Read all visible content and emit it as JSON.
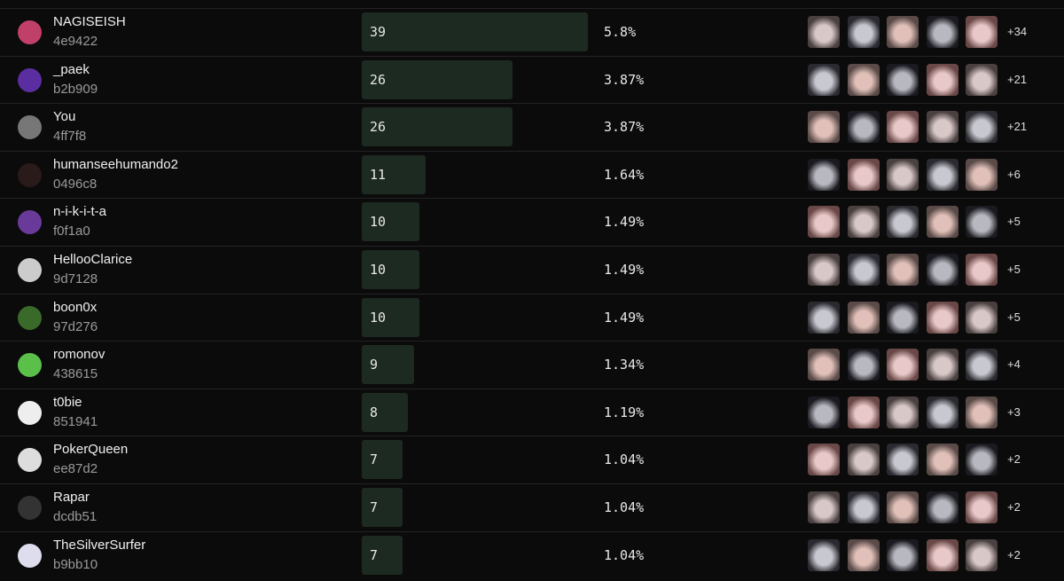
{
  "rows": [
    {
      "name": "NAGISEISH",
      "id": "4e9422",
      "count": 39,
      "percent": "5.8%",
      "more": "+34"
    },
    {
      "name": "_paek",
      "id": "b2b909",
      "count": 26,
      "percent": "3.87%",
      "more": "+21"
    },
    {
      "name": "You",
      "id": "4ff7f8",
      "count": 26,
      "percent": "3.87%",
      "more": "+21"
    },
    {
      "name": "humanseehumando2",
      "id": "0496c8",
      "count": 11,
      "percent": "1.64%",
      "more": "+6"
    },
    {
      "name": "n-i-k-i-t-a",
      "id": "f0f1a0",
      "count": 10,
      "percent": "1.49%",
      "more": "+5"
    },
    {
      "name": "HellooClarice",
      "id": "9d7128",
      "count": 10,
      "percent": "1.49%",
      "more": "+5"
    },
    {
      "name": "boon0x",
      "id": "97d276",
      "count": 10,
      "percent": "1.49%",
      "more": "+5"
    },
    {
      "name": "romonov",
      "id": "438615",
      "count": 9,
      "percent": "1.34%",
      "more": "+4"
    },
    {
      "name": "t0bie",
      "id": "851941",
      "count": 8,
      "percent": "1.19%",
      "more": "+3"
    },
    {
      "name": "PokerQueen",
      "id": "ee87d2",
      "count": 7,
      "percent": "1.04%",
      "more": "+2"
    },
    {
      "name": "Rapar",
      "id": "dcdb51",
      "count": 7,
      "percent": "1.04%",
      "more": "+2"
    },
    {
      "name": "TheSilverSurfer",
      "id": "b9bb10",
      "count": 7,
      "percent": "1.04%",
      "more": "+2"
    }
  ]
}
